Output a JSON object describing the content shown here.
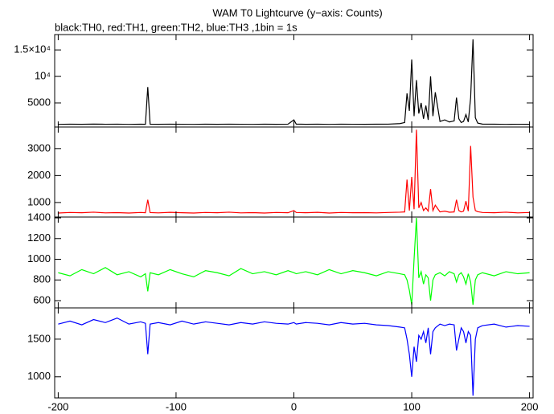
{
  "chart_data": [
    {
      "type": "line",
      "title": "WAM T0 Lightcurve (y−axis: Counts)",
      "subtitle": "black:TH0, red:TH1, green:TH2, blue:TH3 ,1bin = 1s",
      "x": [
        -200,
        -190,
        -180,
        -170,
        -160,
        -150,
        -140,
        -130,
        -126,
        -124,
        -122,
        -115,
        -105,
        -95,
        -85,
        -75,
        -65,
        -55,
        -45,
        -35,
        -25,
        -15,
        -5,
        0,
        2,
        10,
        20,
        30,
        40,
        50,
        60,
        70,
        80,
        90,
        94,
        96,
        98,
        100,
        102,
        104,
        106,
        108,
        110,
        112,
        114,
        116,
        118,
        120,
        124,
        128,
        132,
        136,
        138,
        140,
        142,
        144,
        146,
        148,
        150,
        152,
        154,
        156,
        160,
        170,
        180,
        190,
        200
      ],
      "series": [
        {
          "color": "#000000",
          "values": [
            950,
            980,
            960,
            1000,
            970,
            990,
            950,
            980,
            960,
            8000,
            980,
            960,
            990,
            970,
            950,
            980,
            960,
            990,
            970,
            950,
            980,
            960,
            990,
            1800,
            1000,
            960,
            980,
            950,
            990,
            970,
            960,
            980,
            990,
            1100,
            1300,
            6800,
            3500,
            13200,
            2500,
            9300,
            3000,
            5000,
            2000,
            4500,
            1800,
            10000,
            2500,
            7000,
            1500,
            1800,
            1400,
            1600,
            6000,
            2000,
            1300,
            1500,
            2800,
            1400,
            6000,
            17000,
            2200,
            1200,
            1000,
            980,
            950,
            970,
            960
          ]
        }
      ],
      "xlim": [
        -203,
        203
      ],
      "ylim": [
        450,
        17900
      ],
      "yticks": [
        5000,
        {
          "value": 10000,
          "label": "10⁴"
        },
        {
          "value": 15000,
          "label": "1.5×10⁴"
        }
      ]
    },
    {
      "type": "line",
      "x": [
        -200,
        -190,
        -180,
        -170,
        -160,
        -150,
        -140,
        -130,
        -126,
        -124,
        -122,
        -115,
        -105,
        -95,
        -85,
        -75,
        -65,
        -55,
        -45,
        -35,
        -25,
        -15,
        -5,
        0,
        2,
        10,
        20,
        30,
        40,
        50,
        60,
        70,
        80,
        90,
        94,
        96,
        98,
        100,
        102,
        104,
        106,
        108,
        110,
        112,
        114,
        116,
        118,
        120,
        124,
        128,
        132,
        136,
        138,
        140,
        142,
        144,
        146,
        148,
        150,
        152,
        154,
        156,
        160,
        170,
        180,
        190,
        200
      ],
      "series": [
        {
          "color": "#ff0000",
          "values": [
            610,
            630,
            620,
            640,
            615,
            625,
            610,
            630,
            620,
            1100,
            625,
            615,
            635,
            620,
            610,
            630,
            620,
            640,
            615,
            625,
            610,
            630,
            620,
            700,
            630,
            620,
            635,
            610,
            630,
            620,
            625,
            615,
            630,
            640,
            650,
            1850,
            700,
            1950,
            750,
            3700,
            800,
            1000,
            700,
            800,
            680,
            1500,
            700,
            900,
            650,
            680,
            640,
            650,
            1100,
            700,
            650,
            680,
            1050,
            680,
            3100,
            1200,
            700,
            660,
            630,
            620,
            640,
            615,
            630
          ]
        }
      ],
      "xlim": [
        -203,
        203
      ],
      "ylim": [
        460,
        3800
      ],
      "yticks": [
        1000,
        2000,
        3000
      ]
    },
    {
      "type": "line",
      "x": [
        -200,
        -190,
        -180,
        -170,
        -160,
        -150,
        -140,
        -130,
        -126,
        -124,
        -122,
        -115,
        -105,
        -95,
        -85,
        -75,
        -65,
        -55,
        -45,
        -35,
        -25,
        -15,
        -5,
        0,
        2,
        10,
        20,
        30,
        40,
        50,
        60,
        70,
        80,
        90,
        94,
        96,
        98,
        100,
        102,
        104,
        106,
        108,
        110,
        112,
        114,
        116,
        118,
        120,
        124,
        128,
        132,
        136,
        138,
        140,
        142,
        144,
        146,
        148,
        150,
        152,
        154,
        156,
        160,
        170,
        180,
        190,
        200
      ],
      "series": [
        {
          "color": "#00ff00",
          "values": [
            870,
            840,
            900,
            860,
            920,
            850,
            880,
            830,
            860,
            690,
            870,
            850,
            900,
            860,
            830,
            890,
            870,
            840,
            910,
            860,
            880,
            850,
            890,
            870,
            860,
            880,
            850,
            900,
            860,
            890,
            870,
            840,
            880,
            860,
            850,
            800,
            700,
            560,
            1000,
            1400,
            820,
            880,
            760,
            850,
            820,
            600,
            800,
            850,
            870,
            840,
            880,
            860,
            780,
            850,
            870,
            830,
            760,
            860,
            780,
            560,
            800,
            850,
            870,
            840,
            880,
            860,
            870
          ]
        }
      ],
      "xlim": [
        -203,
        203
      ],
      "ylim": [
        530,
        1408
      ],
      "yticks": [
        600,
        800,
        1000,
        1200,
        1400
      ]
    },
    {
      "type": "line",
      "x": [
        -200,
        -190,
        -180,
        -170,
        -160,
        -150,
        -140,
        -130,
        -126,
        -124,
        -122,
        -115,
        -105,
        -95,
        -85,
        -75,
        -65,
        -55,
        -45,
        -35,
        -25,
        -15,
        -5,
        0,
        2,
        10,
        20,
        30,
        40,
        50,
        60,
        70,
        80,
        90,
        94,
        96,
        98,
        100,
        102,
        104,
        106,
        108,
        110,
        112,
        114,
        116,
        118,
        120,
        124,
        128,
        132,
        136,
        138,
        140,
        142,
        144,
        146,
        148,
        150,
        152,
        154,
        156,
        160,
        170,
        180,
        190,
        200
      ],
      "series": [
        {
          "color": "#0000ff",
          "values": [
            1700,
            1740,
            1690,
            1760,
            1720,
            1780,
            1700,
            1730,
            1710,
            1300,
            1700,
            1720,
            1690,
            1740,
            1700,
            1730,
            1710,
            1690,
            1720,
            1700,
            1730,
            1710,
            1700,
            1720,
            1700,
            1720,
            1710,
            1690,
            1720,
            1700,
            1710,
            1690,
            1680,
            1660,
            1650,
            1500,
            1300,
            1000,
            1400,
            1200,
            1550,
            1500,
            1600,
            1450,
            1650,
            1300,
            1600,
            1650,
            1700,
            1680,
            1700,
            1690,
            1350,
            1500,
            1650,
            1600,
            1450,
            1600,
            1550,
            750,
            1500,
            1650,
            1680,
            1700,
            1660,
            1680,
            1670
          ]
        }
      ],
      "xlim": [
        -203,
        203
      ],
      "ylim": [
        720,
        1915
      ],
      "yticks": [
        1000,
        1500
      ],
      "xticks": [
        -200,
        -100,
        0,
        100,
        200
      ]
    }
  ]
}
